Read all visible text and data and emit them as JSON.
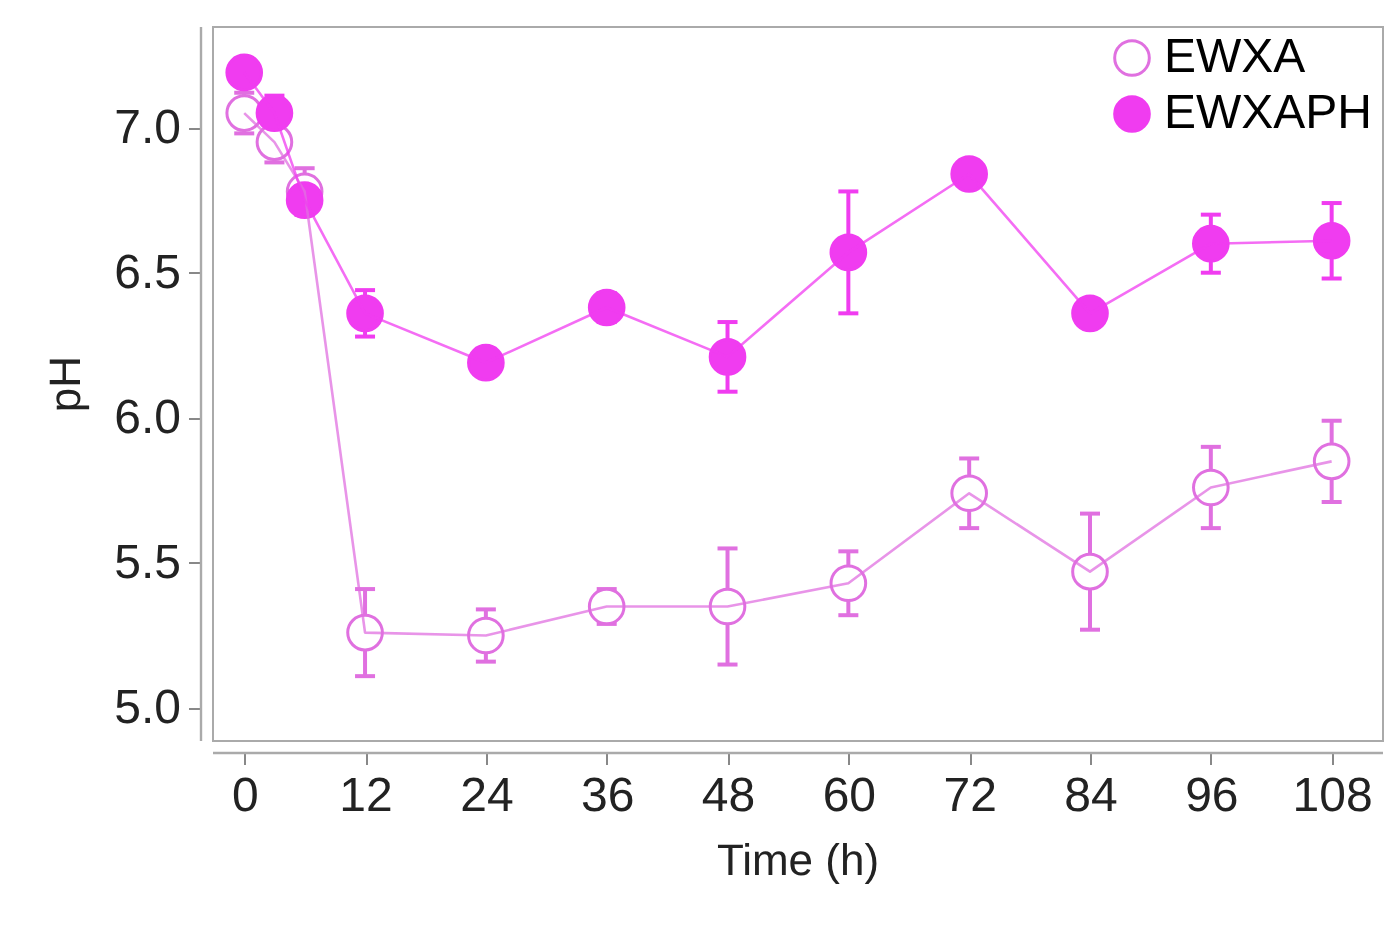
{
  "chart_data": {
    "type": "line",
    "xlabel": "Time (h)",
    "ylabel": "pH",
    "x": [
      0,
      3,
      6,
      12,
      24,
      36,
      48,
      60,
      72,
      84,
      96,
      108
    ],
    "series": [
      {
        "name": "EWXA",
        "color": "#e070e0",
        "values": [
          7.05,
          6.95,
          6.78,
          5.26,
          5.25,
          5.35,
          5.35,
          5.43,
          5.74,
          5.47,
          5.76,
          5.85
        ],
        "errors": [
          0.07,
          0.07,
          0.08,
          0.15,
          0.09,
          0.06,
          0.2,
          0.11,
          0.12,
          0.2,
          0.14,
          0.14
        ]
      },
      {
        "name": "EWXAPH",
        "color": "#f03cf0",
        "values": [
          7.19,
          7.05,
          6.75,
          6.36,
          6.19,
          6.38,
          6.21,
          6.57,
          6.84,
          6.36,
          6.6,
          6.61
        ],
        "errors": [
          0.02,
          0.06,
          0.05,
          0.08,
          0.02,
          0.05,
          0.12,
          0.21,
          0.02,
          0.03,
          0.1,
          0.13
        ]
      }
    ],
    "xlim": [
      -3.2,
      113
    ],
    "xticks": [
      0,
      12,
      24,
      36,
      48,
      60,
      72,
      84,
      96,
      108
    ],
    "ylim": [
      4.89,
      7.35
    ],
    "yticks": [
      {
        "value": 5,
        "label": "5.0"
      },
      5.5,
      {
        "value": 6,
        "label": "6.0"
      },
      6.5,
      {
        "value": 7,
        "label": "7.0"
      }
    ],
    "marker": "circle",
    "line_style": "solid",
    "legend": "top right",
    "grid": false
  }
}
